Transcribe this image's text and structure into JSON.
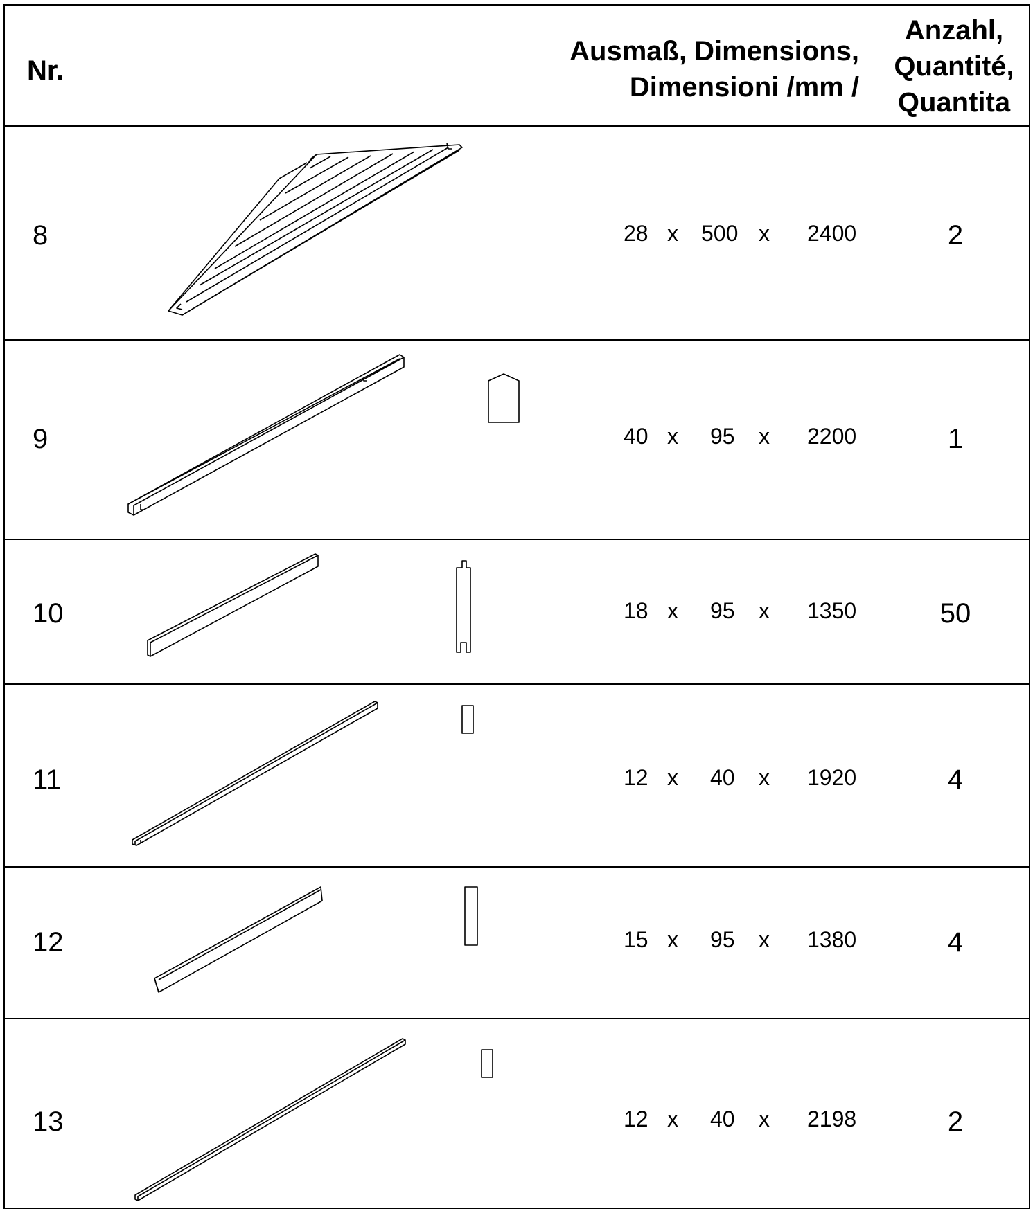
{
  "header": {
    "nr": "Nr.",
    "dimensions_line1": "Ausmaß, Dimensions,",
    "dimensions_line2": "Dimensioni /mm /",
    "quantity_line1": "Anzahl,",
    "quantity_line2": "Quantité,",
    "quantity_line3": "Quantita"
  },
  "times_symbol": "x",
  "parts": [
    {
      "nr": "8",
      "d1": "28",
      "d2": "500",
      "d3": "2400",
      "qty": "2"
    },
    {
      "nr": "9",
      "d1": "40",
      "d2": "95",
      "d3": "2200",
      "qty": "1"
    },
    {
      "nr": "10",
      "d1": "18",
      "d2": "95",
      "d3": "1350",
      "qty": "50"
    },
    {
      "nr": "11",
      "d1": "12",
      "d2": "40",
      "d3": "1920",
      "qty": "4"
    },
    {
      "nr": "12",
      "d1": "15",
      "d2": "95",
      "d3": "1380",
      "qty": "4"
    },
    {
      "nr": "13",
      "d1": "12",
      "d2": "40",
      "d3": "2198",
      "qty": "2"
    }
  ]
}
